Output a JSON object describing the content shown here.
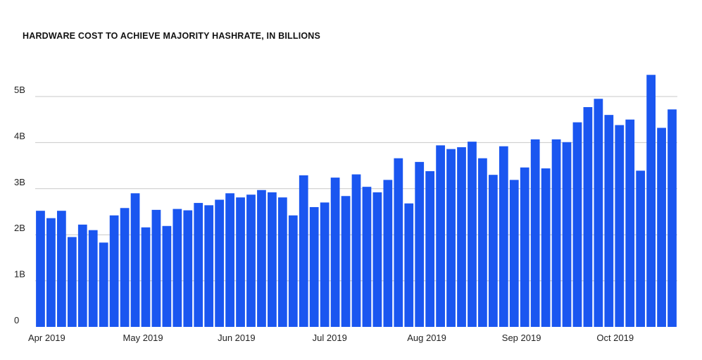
{
  "chart_data": {
    "type": "bar",
    "title": "HARDWARE COST TO ACHIEVE MAJORITY HASHRATE, IN BILLIONS",
    "xlabel": "",
    "ylabel": "",
    "ylim": [
      0,
      5.5
    ],
    "yticks": [
      {
        "value": 0,
        "label": "0"
      },
      {
        "value": 1,
        "label": "1B"
      },
      {
        "value": 2,
        "label": "2B"
      },
      {
        "value": 3,
        "label": "3B"
      },
      {
        "value": 4,
        "label": "4B"
      },
      {
        "value": 5,
        "label": "5B"
      }
    ],
    "xticks": [
      {
        "index": 0,
        "label": "Apr 2019"
      },
      {
        "index": 9,
        "label": "May 2019"
      },
      {
        "index": 18,
        "label": "Jun 2019"
      },
      {
        "index": 27,
        "label": "Jul 2019"
      },
      {
        "index": 36,
        "label": "Aug 2019"
      },
      {
        "index": 45,
        "label": "Sep 2019"
      },
      {
        "index": 54,
        "label": "Oct 2019"
      }
    ],
    "grid": true,
    "bar_color": "#1a56f0",
    "values": [
      2.52,
      2.36,
      2.52,
      1.95,
      2.22,
      2.1,
      1.83,
      2.42,
      2.58,
      2.9,
      2.16,
      2.54,
      2.19,
      2.56,
      2.53,
      2.69,
      2.64,
      2.76,
      2.9,
      2.81,
      2.87,
      2.97,
      2.92,
      2.81,
      2.42,
      3.29,
      2.6,
      2.7,
      3.24,
      2.84,
      3.31,
      3.04,
      2.92,
      3.19,
      3.66,
      2.68,
      3.58,
      3.38,
      3.94,
      3.86,
      3.9,
      4.02,
      3.66,
      3.3,
      3.92,
      3.19,
      3.46,
      4.07,
      3.44,
      4.07,
      4.01,
      4.44,
      4.77,
      4.95,
      4.6,
      4.38,
      4.5,
      3.39,
      5.47,
      4.32,
      4.72
    ]
  }
}
